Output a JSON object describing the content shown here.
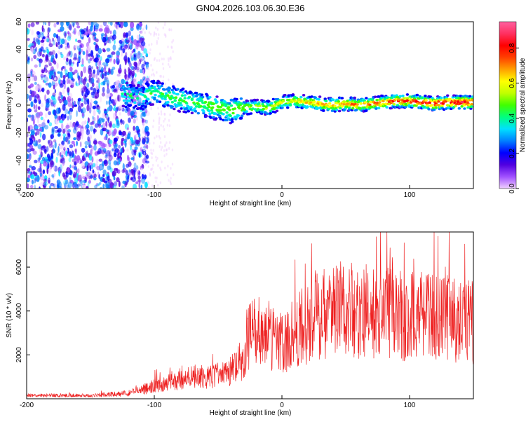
{
  "chart_data": [
    {
      "type": "heatmap",
      "title": "GN04.2026.103.06.30.E36",
      "xlabel": "Height of straight line (km)",
      "ylabel": "Frequency (Hz)",
      "xlim": [
        -200,
        150
      ],
      "ylim": [
        -60,
        60
      ],
      "xticks": [
        -200,
        -100,
        0,
        100
      ],
      "xtick_labels": [
        "-200",
        "-100",
        "0",
        "100"
      ],
      "yticks": [
        60,
        40,
        20,
        0,
        -20,
        -40,
        -60
      ],
      "ytick_labels": [
        "60",
        "40",
        "20",
        "0",
        "-20",
        "-40",
        "-60"
      ],
      "colorbar": {
        "label": "Normalized spectral amplitude",
        "range": [
          0,
          0.95
        ],
        "ticks": [
          0.0,
          0.2,
          0.4,
          0.6,
          0.8
        ],
        "tick_labels": [
          "0.0",
          "0.2",
          "0.4",
          "0.6",
          "0.8"
        ],
        "colors": [
          "#f0d0ff",
          "#a050ff",
          "#5000e0",
          "#0000ff",
          "#0080ff",
          "#00e0ff",
          "#00ff80",
          "#40ff00",
          "#c0ff00",
          "#ffff00",
          "#ffa000",
          "#ff4000",
          "#ff0000",
          "#ff3060",
          "#ff60a0"
        ]
      },
      "ridge": {
        "x": [
          -125,
          -110,
          -100,
          -90,
          -80,
          -70,
          -60,
          -50,
          -40,
          -30,
          -20,
          -10,
          0,
          10,
          20,
          30,
          40,
          50,
          60,
          70,
          80,
          90,
          100,
          110,
          120,
          130,
          140,
          150
        ],
        "y": [
          8,
          5,
          10,
          6,
          4,
          2,
          0,
          -2,
          -4,
          -2,
          -1,
          -2,
          2,
          3,
          2,
          1,
          0,
          1,
          0,
          1,
          2,
          3,
          3,
          2,
          1,
          2,
          2,
          2
        ]
      }
    },
    {
      "type": "line",
      "title": "",
      "xlabel": "Height of straight line (km)",
      "ylabel": "SNR (10 * v/v)",
      "xlim": [
        -200,
        150
      ],
      "ylim": [
        0,
        7600
      ],
      "xticks": [
        -200,
        -100,
        0,
        100
      ],
      "xtick_labels": [
        "-200",
        "-100",
        "0",
        "100"
      ],
      "yticks": [
        2000,
        4000,
        6000
      ],
      "ytick_labels": [
        "2000",
        "4000",
        "6000"
      ],
      "color": "#ee2222",
      "envelope": {
        "x": [
          -200,
          -150,
          -120,
          -110,
          -100,
          -90,
          -80,
          -70,
          -60,
          -50,
          -40,
          -30,
          -28,
          -25,
          -20,
          -15,
          -10,
          -5,
          0,
          5,
          10,
          20,
          30,
          40,
          50,
          60,
          80,
          100,
          120,
          140,
          150
        ],
        "y": [
          150,
          150,
          250,
          400,
          600,
          700,
          900,
          1000,
          1000,
          1100,
          1300,
          1600,
          2600,
          2900,
          3000,
          3000,
          2900,
          2700,
          2500,
          2700,
          3000,
          3500,
          4000,
          4100,
          4100,
          4000,
          3900,
          3800,
          3700,
          3600,
          3500
        ]
      }
    }
  ]
}
